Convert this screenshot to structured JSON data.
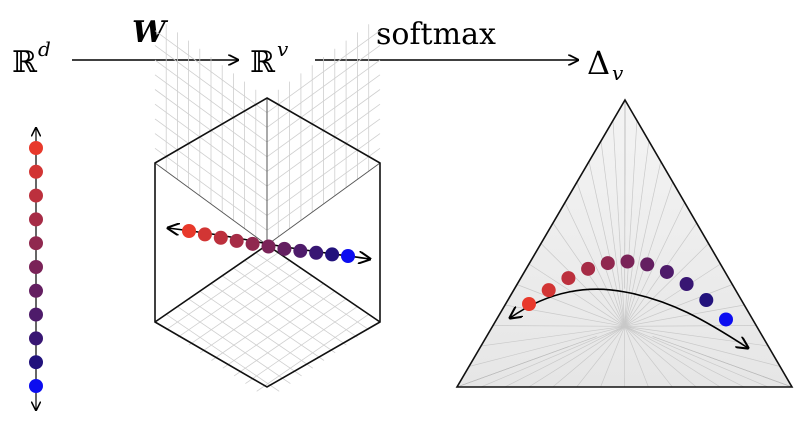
{
  "labels": {
    "space_d": "ℝ",
    "space_d_sup": "d",
    "space_v": "ℝ",
    "space_v_sup": "v",
    "arrow1_label": "W",
    "arrow2_label": "softmax",
    "simplex": "Δ",
    "simplex_sub": "v"
  },
  "colors": {
    "gradient": [
      "#e8392b",
      "#d23534",
      "#bc303d",
      "#a62c46",
      "#90284f",
      "#7a2358",
      "#641f61",
      "#4e1b6a",
      "#381673",
      "#22127c",
      "#0c0df0"
    ],
    "axis": "#000000",
    "grid": "#cccccc",
    "edge": "#111111"
  }
}
